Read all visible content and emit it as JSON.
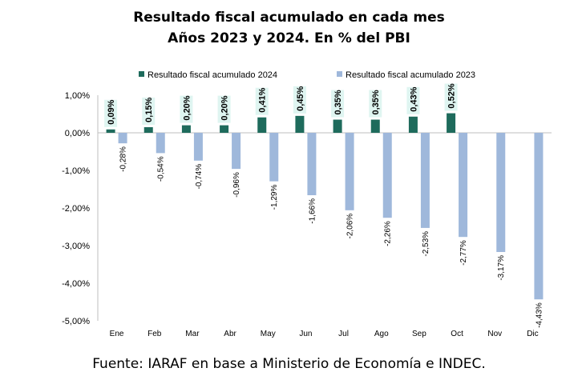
{
  "title_line1": "Resultado fiscal acumulado en cada mes",
  "title_line2": "Años 2023 y 2024. En % del PBI",
  "source": "Fuente: IARAF en base a Ministerio de Economía e INDEC.",
  "colors": {
    "s2024": "#1e6b5c",
    "s2023": "#9fb8db",
    "label_bg_2024": "#dff5f1",
    "grid": "#d9d9d9"
  },
  "chart_data": {
    "type": "bar",
    "categories": [
      "Ene",
      "Feb",
      "Mar",
      "Abr",
      "May",
      "Jun",
      "Jul",
      "Ago",
      "Sep",
      "Oct",
      "Nov",
      "Dic"
    ],
    "series": [
      {
        "name": "Resultado fiscal acumulado 2024",
        "values": [
          0.09,
          0.15,
          0.2,
          0.2,
          0.41,
          0.45,
          0.35,
          0.35,
          0.43,
          0.52,
          null,
          null
        ],
        "labels": [
          "0,09%",
          "0,15%",
          "0,20%",
          "0,20%",
          "0,41%",
          "0,45%",
          "0,35%",
          "0,35%",
          "0,43%",
          "0,52%",
          "",
          ""
        ]
      },
      {
        "name": "Resultado fiscal acumulado 2023",
        "values": [
          -0.28,
          -0.54,
          -0.74,
          -0.96,
          -1.29,
          -1.66,
          -2.06,
          -2.26,
          -2.53,
          -2.77,
          -3.17,
          -4.43
        ],
        "labels": [
          "-0,28%",
          "-0,54%",
          "-0,74%",
          "-0,96%",
          "-1,29%",
          "-1,66%",
          "-2,06%",
          "-2,26%",
          "-2,53%",
          "-2,77%",
          "-3,17%",
          "-4,43%"
        ]
      }
    ],
    "yticks": [
      1,
      0,
      -1,
      -2,
      -3,
      -4,
      -5
    ],
    "ytick_labels": [
      "1,00%",
      "0,00%",
      "-1,00%",
      "-2,00%",
      "-3,00%",
      "-4,00%",
      "-5,00%"
    ],
    "ylim": [
      -5,
      1
    ],
    "legend_position": "top",
    "grid": false
  }
}
